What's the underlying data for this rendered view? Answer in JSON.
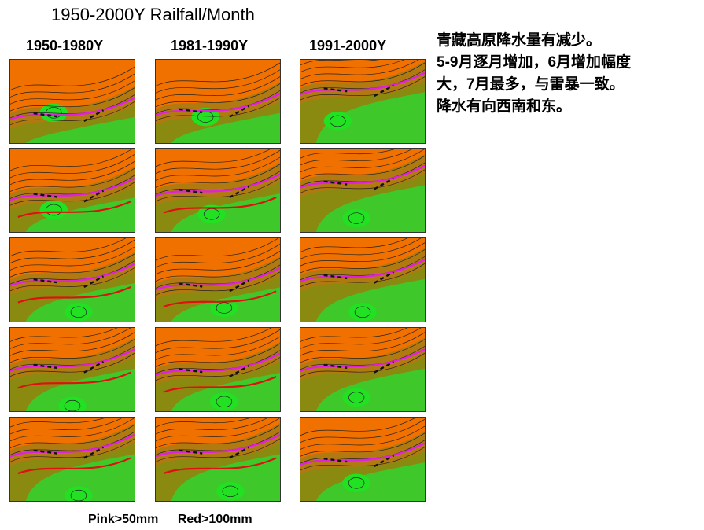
{
  "title": "1950-2000Y Railfall/Month",
  "columns": [
    {
      "label": "1950-1980Y"
    },
    {
      "label": "1981-1990Y"
    },
    {
      "label": "1991-2000Y"
    }
  ],
  "notes": [
    "青藏高原降水量有减少。",
    "5-9月逐月增加，6月增加幅度",
    "大，7月最多，与雷暴一致。",
    "降水有向西南和东。"
  ],
  "legend": {
    "pink": "Pink>50mm",
    "red": "Red>100mm"
  },
  "colors": {
    "dry": "#f07000",
    "mid": "#b07a10",
    "olive": "#8a8a10",
    "wet": "#3ec82a",
    "wettest": "#22e022",
    "pink_contour": "#e020e0",
    "red_contour": "#e01010"
  }
}
